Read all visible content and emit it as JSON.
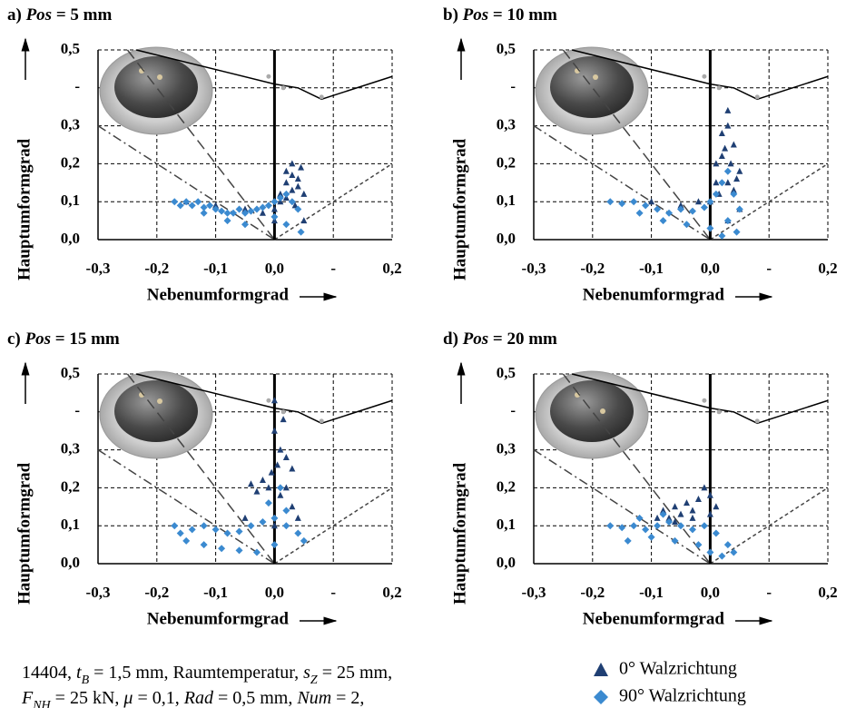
{
  "chart_data": [
    {
      "type": "scatter",
      "title": [
        "a) ",
        "Pos",
        " = 5 mm"
      ],
      "xlabel": "Nebenumformgrad",
      "ylabel": "Hauptumformgrad",
      "xlim": [
        -0.3,
        0.2
      ],
      "ylim": [
        0,
        0.5
      ],
      "xticks": [
        {
          "value": -0.3,
          "label": "-0,3"
        },
        {
          "value": -0.2,
          "label": "-0,2"
        },
        {
          "value": -0.1,
          "label": "-0,1"
        },
        {
          "value": 0,
          "label": "0,0"
        },
        {
          "value": 0.1,
          "label": "-"
        },
        {
          "value": 0.2,
          "label": "0,2"
        }
      ],
      "yticks": [
        {
          "value": 0,
          "label": "0,0"
        },
        {
          "value": 0.1,
          "label": "0,1"
        },
        {
          "value": 0.2,
          "label": "0,2"
        },
        {
          "value": 0.3,
          "label": "0,3"
        },
        {
          "value": 0.4,
          "label": "-"
        },
        {
          "value": 0.5,
          "label": "0,5"
        }
      ],
      "grid": true,
      "reference_lines": [
        {
          "style": "solid",
          "x": [
            -0.235,
            0,
            0.04,
            0.08,
            0.2
          ],
          "y": [
            0.5,
            0.41,
            0.4,
            0.37,
            0.43
          ]
        },
        {
          "style": "dashed",
          "x": [
            -0.25,
            0
          ],
          "y": [
            0.5,
            0
          ]
        },
        {
          "style": "dashdot",
          "x": [
            -0.3,
            0
          ],
          "y": [
            0.3,
            0
          ]
        },
        {
          "style": "dotted",
          "x": [
            0,
            0.2
          ],
          "y": [
            0,
            0.2
          ]
        },
        {
          "style": "thick",
          "x": [
            0,
            0
          ],
          "y": [
            0,
            0.5
          ]
        }
      ],
      "flc_markers": {
        "x": [
          -0.01,
          0.015,
          0.08
        ],
        "y": [
          0.43,
          0.4,
          0.376
        ]
      },
      "series": [
        {
          "name": "0° Walzrichtung",
          "color": "#1f3f73",
          "marker": "triangle",
          "x": [
            0.0,
            0.01,
            0.02,
            0.03,
            0.04,
            0.05,
            0.02,
            0.03,
            0.04,
            0.01,
            0.0,
            -0.02,
            -0.05,
            -0.1,
            -0.15,
            0.03,
            0.045,
            0.02,
            0.035,
            0.05
          ],
          "y": [
            0.05,
            0.1,
            0.15,
            0.2,
            0.16,
            0.12,
            0.18,
            0.17,
            0.14,
            0.12,
            0.08,
            0.07,
            0.08,
            0.09,
            0.1,
            0.13,
            0.19,
            0.11,
            0.09,
            0.05
          ]
        },
        {
          "name": "90° Walzrichtung",
          "color": "#3b8ad0",
          "marker": "diamond",
          "x": [
            -0.17,
            -0.16,
            -0.15,
            -0.14,
            -0.13,
            -0.12,
            -0.11,
            -0.1,
            -0.09,
            -0.08,
            -0.07,
            -0.06,
            -0.05,
            -0.04,
            -0.03,
            -0.02,
            -0.01,
            0.0,
            0.01,
            0.02,
            0.03,
            0.04,
            -0.12,
            -0.08,
            -0.05,
            0.0,
            0.02,
            0.045
          ],
          "y": [
            0.1,
            0.09,
            0.1,
            0.09,
            0.1,
            0.085,
            0.09,
            0.08,
            0.075,
            0.07,
            0.07,
            0.08,
            0.07,
            0.075,
            0.08,
            0.085,
            0.09,
            0.1,
            0.11,
            0.12,
            0.1,
            0.08,
            0.07,
            0.05,
            0.04,
            0.06,
            0.04,
            0.02
          ]
        }
      ]
    },
    {
      "type": "scatter",
      "title": [
        "b) ",
        "Pos",
        " = 10 mm"
      ],
      "xlabel": "Nebenumformgrad",
      "ylabel": "Hauptumformgrad",
      "xlim": [
        -0.3,
        0.2
      ],
      "ylim": [
        0,
        0.5
      ],
      "xticks": [
        {
          "value": -0.3,
          "label": "-0,3"
        },
        {
          "value": -0.2,
          "label": "-0,2"
        },
        {
          "value": -0.1,
          "label": "-0,1"
        },
        {
          "value": 0,
          "label": "0,0"
        },
        {
          "value": 0.1,
          "label": "-"
        },
        {
          "value": 0.2,
          "label": "0,2"
        }
      ],
      "yticks": [
        {
          "value": 0,
          "label": "0,0"
        },
        {
          "value": 0.1,
          "label": "0,1"
        },
        {
          "value": 0.2,
          "label": "0,2"
        },
        {
          "value": 0.3,
          "label": "0,3"
        },
        {
          "value": 0.4,
          "label": "-"
        },
        {
          "value": 0.5,
          "label": "0,5"
        }
      ],
      "grid": true,
      "reference_lines": [
        {
          "style": "solid",
          "x": [
            -0.235,
            0,
            0.04,
            0.08,
            0.2
          ],
          "y": [
            0.5,
            0.41,
            0.4,
            0.37,
            0.43
          ]
        },
        {
          "style": "dashed",
          "x": [
            -0.25,
            0
          ],
          "y": [
            0.5,
            0
          ]
        },
        {
          "style": "dashdot",
          "x": [
            -0.3,
            0
          ],
          "y": [
            0.3,
            0
          ]
        },
        {
          "style": "dotted",
          "x": [
            0,
            0.2
          ],
          "y": [
            0,
            0.2
          ]
        },
        {
          "style": "thick",
          "x": [
            0,
            0
          ],
          "y": [
            0,
            0.5
          ]
        }
      ],
      "flc_markers": {
        "x": [
          -0.01,
          0.015,
          0.08
        ],
        "y": [
          0.43,
          0.4,
          0.376
        ]
      },
      "series": [
        {
          "name": "0° Walzrichtung",
          "color": "#1f3f73",
          "marker": "triangle",
          "x": [
            0.0,
            0.01,
            0.02,
            0.03,
            0.04,
            0.05,
            0.02,
            0.03,
            0.035,
            0.04,
            0.025,
            0.01,
            -0.02,
            -0.05,
            -0.1,
            0.03,
            0.045,
            0.015,
            0.05,
            0.03
          ],
          "y": [
            0.1,
            0.15,
            0.22,
            0.34,
            0.25,
            0.18,
            0.28,
            0.3,
            0.2,
            0.13,
            0.24,
            0.2,
            0.1,
            0.09,
            0.1,
            0.15,
            0.16,
            0.12,
            0.08,
            0.05
          ]
        },
        {
          "name": "90° Walzrichtung",
          "color": "#3b8ad0",
          "marker": "diamond",
          "x": [
            -0.17,
            -0.15,
            -0.13,
            -0.11,
            -0.09,
            -0.07,
            -0.05,
            -0.03,
            -0.01,
            0.0,
            0.01,
            0.02,
            0.03,
            0.04,
            0.05,
            -0.12,
            -0.08,
            -0.04,
            0.0,
            0.03,
            0.045,
            0.02
          ],
          "y": [
            0.1,
            0.095,
            0.1,
            0.09,
            0.08,
            0.07,
            0.08,
            0.075,
            0.085,
            0.1,
            0.12,
            0.15,
            0.18,
            0.12,
            0.08,
            0.07,
            0.05,
            0.04,
            0.03,
            0.05,
            0.02,
            0.01
          ]
        }
      ]
    },
    {
      "type": "scatter",
      "title": [
        "c) ",
        "Pos",
        " = 15 mm"
      ],
      "xlabel": "Nebenumformgrad",
      "ylabel": "Hauptumformgrad",
      "xlim": [
        -0.3,
        0.2
      ],
      "ylim": [
        0,
        0.5
      ],
      "xticks": [
        {
          "value": -0.3,
          "label": "-0,3"
        },
        {
          "value": -0.2,
          "label": "-0,2"
        },
        {
          "value": -0.1,
          "label": "-0,1"
        },
        {
          "value": 0,
          "label": "0,0"
        },
        {
          "value": 0.1,
          "label": "-"
        },
        {
          "value": 0.2,
          "label": "0,2"
        }
      ],
      "yticks": [
        {
          "value": 0,
          "label": "0,0"
        },
        {
          "value": 0.1,
          "label": "0,1"
        },
        {
          "value": 0.2,
          "label": "0,2"
        },
        {
          "value": 0.3,
          "label": "0,3"
        },
        {
          "value": 0.4,
          "label": "-"
        },
        {
          "value": 0.5,
          "label": "0,5"
        }
      ],
      "grid": true,
      "reference_lines": [
        {
          "style": "solid",
          "x": [
            -0.235,
            0,
            0.04,
            0.08,
            0.2
          ],
          "y": [
            0.5,
            0.41,
            0.4,
            0.37,
            0.43
          ]
        },
        {
          "style": "dashed",
          "x": [
            -0.25,
            0
          ],
          "y": [
            0.5,
            0
          ]
        },
        {
          "style": "dashdot",
          "x": [
            -0.3,
            0
          ],
          "y": [
            0.3,
            0
          ]
        },
        {
          "style": "dotted",
          "x": [
            0,
            0.2
          ],
          "y": [
            0,
            0.2
          ]
        },
        {
          "style": "thick",
          "x": [
            0,
            0
          ],
          "y": [
            0,
            0.5
          ]
        }
      ],
      "flc_markers": {
        "x": [
          -0.01,
          0.015,
          0.08
        ],
        "y": [
          0.43,
          0.4,
          0.376
        ]
      },
      "series": [
        {
          "name": "0° Walzrichtung",
          "color": "#1f3f73",
          "marker": "triangle",
          "x": [
            0.0,
            0.0,
            0.01,
            0.005,
            -0.005,
            0.02,
            0.03,
            0.02,
            0.01,
            -0.01,
            -0.02,
            -0.03,
            -0.04,
            0.03,
            0.04,
            0.0,
            0.015,
            -0.05
          ],
          "y": [
            0.43,
            0.35,
            0.3,
            0.26,
            0.24,
            0.28,
            0.25,
            0.2,
            0.18,
            0.2,
            0.22,
            0.19,
            0.21,
            0.15,
            0.12,
            0.1,
            0.38,
            0.12
          ]
        },
        {
          "name": "90° Walzrichtung",
          "color": "#3b8ad0",
          "marker": "diamond",
          "x": [
            -0.17,
            -0.16,
            -0.14,
            -0.12,
            -0.1,
            -0.08,
            -0.06,
            -0.04,
            -0.02,
            0.0,
            0.02,
            0.04,
            0.05,
            -0.15,
            -0.12,
            -0.09,
            -0.06,
            -0.03,
            0.0,
            0.02,
            0.01,
            -0.01
          ],
          "y": [
            0.1,
            0.08,
            0.09,
            0.1,
            0.09,
            0.08,
            0.085,
            0.1,
            0.11,
            0.12,
            0.1,
            0.08,
            0.06,
            0.06,
            0.05,
            0.04,
            0.035,
            0.03,
            0.05,
            0.14,
            0.2,
            0.16
          ]
        }
      ]
    },
    {
      "type": "scatter",
      "title": [
        "d) ",
        "Pos",
        " = 20 mm"
      ],
      "xlabel": "Nebenumformgrad",
      "ylabel": "Hauptumformgrad",
      "xlim": [
        -0.3,
        0.2
      ],
      "ylim": [
        0,
        0.5
      ],
      "xticks": [
        {
          "value": -0.3,
          "label": "-0,3"
        },
        {
          "value": -0.2,
          "label": "-0,2"
        },
        {
          "value": -0.1,
          "label": "-0,1"
        },
        {
          "value": 0,
          "label": "0,0"
        },
        {
          "value": 0.1,
          "label": "-"
        },
        {
          "value": 0.2,
          "label": "0,2"
        }
      ],
      "yticks": [
        {
          "value": 0,
          "label": "0,0"
        },
        {
          "value": 0.1,
          "label": "0,1"
        },
        {
          "value": 0.2,
          "label": "0,2"
        },
        {
          "value": 0.3,
          "label": "0,3"
        },
        {
          "value": 0.4,
          "label": "-"
        },
        {
          "value": 0.5,
          "label": "0,5"
        }
      ],
      "grid": true,
      "reference_lines": [
        {
          "style": "solid",
          "x": [
            -0.235,
            0,
            0.04,
            0.08,
            0.2
          ],
          "y": [
            0.5,
            0.41,
            0.4,
            0.37,
            0.43
          ]
        },
        {
          "style": "dashed",
          "x": [
            -0.25,
            0
          ],
          "y": [
            0.5,
            0
          ]
        },
        {
          "style": "dashdot",
          "x": [
            -0.3,
            0
          ],
          "y": [
            0.3,
            0
          ]
        },
        {
          "style": "dotted",
          "x": [
            0,
            0.2
          ],
          "y": [
            0,
            0.2
          ]
        },
        {
          "style": "thick",
          "x": [
            0,
            0
          ],
          "y": [
            0,
            0.5
          ]
        }
      ],
      "flc_markers": {
        "x": [
          -0.01,
          0.015,
          0.08
        ],
        "y": [
          0.43,
          0.4,
          0.376
        ]
      },
      "series": [
        {
          "name": "0° Walzrichtung",
          "color": "#1f3f73",
          "marker": "triangle",
          "x": [
            -0.08,
            -0.07,
            -0.06,
            -0.05,
            -0.04,
            -0.03,
            -0.02,
            -0.01,
            0.0,
            0.01,
            -0.09,
            -0.06,
            -0.03,
            0.0
          ],
          "y": [
            0.14,
            0.12,
            0.15,
            0.13,
            0.16,
            0.14,
            0.17,
            0.2,
            0.18,
            0.15,
            0.12,
            0.11,
            0.12,
            0.13
          ]
        },
        {
          "name": "90° Walzrichtung",
          "color": "#3b8ad0",
          "marker": "diamond",
          "x": [
            -0.17,
            -0.15,
            -0.13,
            -0.11,
            -0.09,
            -0.07,
            -0.05,
            -0.03,
            -0.01,
            0.01,
            0.03,
            0.04,
            -0.14,
            -0.1,
            -0.06,
            -0.02,
            0.0,
            0.02,
            -0.12,
            -0.08
          ],
          "y": [
            0.1,
            0.095,
            0.1,
            0.09,
            0.1,
            0.11,
            0.1,
            0.09,
            0.1,
            0.08,
            0.05,
            0.03,
            0.06,
            0.07,
            0.06,
            0.05,
            0.03,
            0.02,
            0.12,
            0.13
          ]
        }
      ]
    }
  ],
  "caption": [
    [
      {
        "text": "14404, "
      },
      {
        "text": "t",
        "style": "i"
      },
      {
        "text": "B",
        "style": "isub"
      },
      {
        "text": " = 1,5 mm, Raumtemperatur, "
      },
      {
        "text": "s",
        "style": "i"
      },
      {
        "text": "Z",
        "style": "isub"
      },
      {
        "text": " = 25 mm,"
      }
    ],
    [
      {
        "text": "F",
        "style": "i"
      },
      {
        "text": "NH",
        "style": "isub"
      },
      {
        "text": " = 25 kN, "
      },
      {
        "text": "μ",
        "style": "i"
      },
      {
        "text": " = 0,1, "
      },
      {
        "text": "Rad",
        "style": "i"
      },
      {
        "text": " = 0,5 mm, "
      },
      {
        "text": "Num",
        "style": "i"
      },
      {
        "text": " = 2,"
      }
    ]
  ]
}
